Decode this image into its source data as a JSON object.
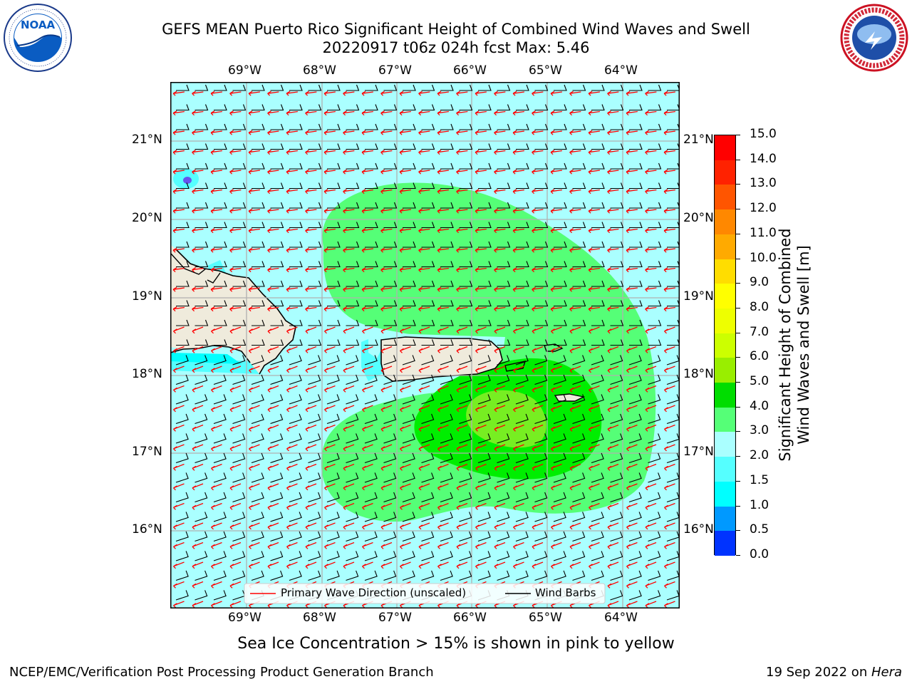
{
  "header": {
    "title_line1": "GEFS MEAN Puerto Rico Significant Height of Combined Wind Waves and Swell",
    "title_line2": "20220917 t06z 024h fcst   Max: 5.46"
  },
  "logos": {
    "left": {
      "name": "noaa-logo",
      "text": "NOAA",
      "ring_text": "NATIONAL OCEANIC AND ATMOSPHERIC ADMINISTRATION · U.S. DEPARTMENT OF COMMERCE"
    },
    "right": {
      "name": "nws-logo",
      "ring_text": "NATIONAL WEATHER SERVICE"
    }
  },
  "map": {
    "lon_labels": [
      "69°W",
      "68°W",
      "67°W",
      "66°W",
      "65°W",
      "64°W"
    ],
    "lat_labels": [
      "21°N",
      "20°N",
      "19°N",
      "18°N",
      "17°N",
      "16°N"
    ],
    "colors": {
      "ocean_low": "#aaffff",
      "ocean_mid": "#55ff77",
      "ocean_high": "#00ee00",
      "peak": "#77ee22",
      "land": "#efebdc",
      "grid": "#b0b0b0",
      "wave_arrow": "#ff0000",
      "wind_barb": "#000000"
    },
    "legend": {
      "wave_label": "Primary Wave Direction (unscaled)",
      "wind_label": "Wind Barbs"
    }
  },
  "colorbar": {
    "label_line1": "Significant Height of Combined",
    "label_line2": "Wind Waves and Swell [m]",
    "ticks": [
      "15.0",
      "14.0",
      "13.0",
      "12.0",
      "11.0",
      "10.0",
      "9.0",
      "8.0",
      "7.0",
      "6.0",
      "5.0",
      "4.0",
      "3.0",
      "2.0",
      "1.5",
      "1.0",
      "0.5",
      "0.0"
    ],
    "bins_top_to_bottom": [
      "#ff0000",
      "#ff2200",
      "#ff5500",
      "#ff8800",
      "#ffaa00",
      "#ffdd00",
      "#ffff00",
      "#eeff00",
      "#ccff00",
      "#99ee00",
      "#00dd00",
      "#55ff77",
      "#aaffff",
      "#55ffff",
      "#00ffff",
      "#0099ff",
      "#0033ff"
    ]
  },
  "caption": "Sea Ice Concentration > 15% is shown in pink to yellow",
  "footer": {
    "left": "NCEP/EMC/Verification Post Processing Product Generation Branch",
    "right_prefix": "19 Sep 2022 on ",
    "right_host": "Hera"
  }
}
